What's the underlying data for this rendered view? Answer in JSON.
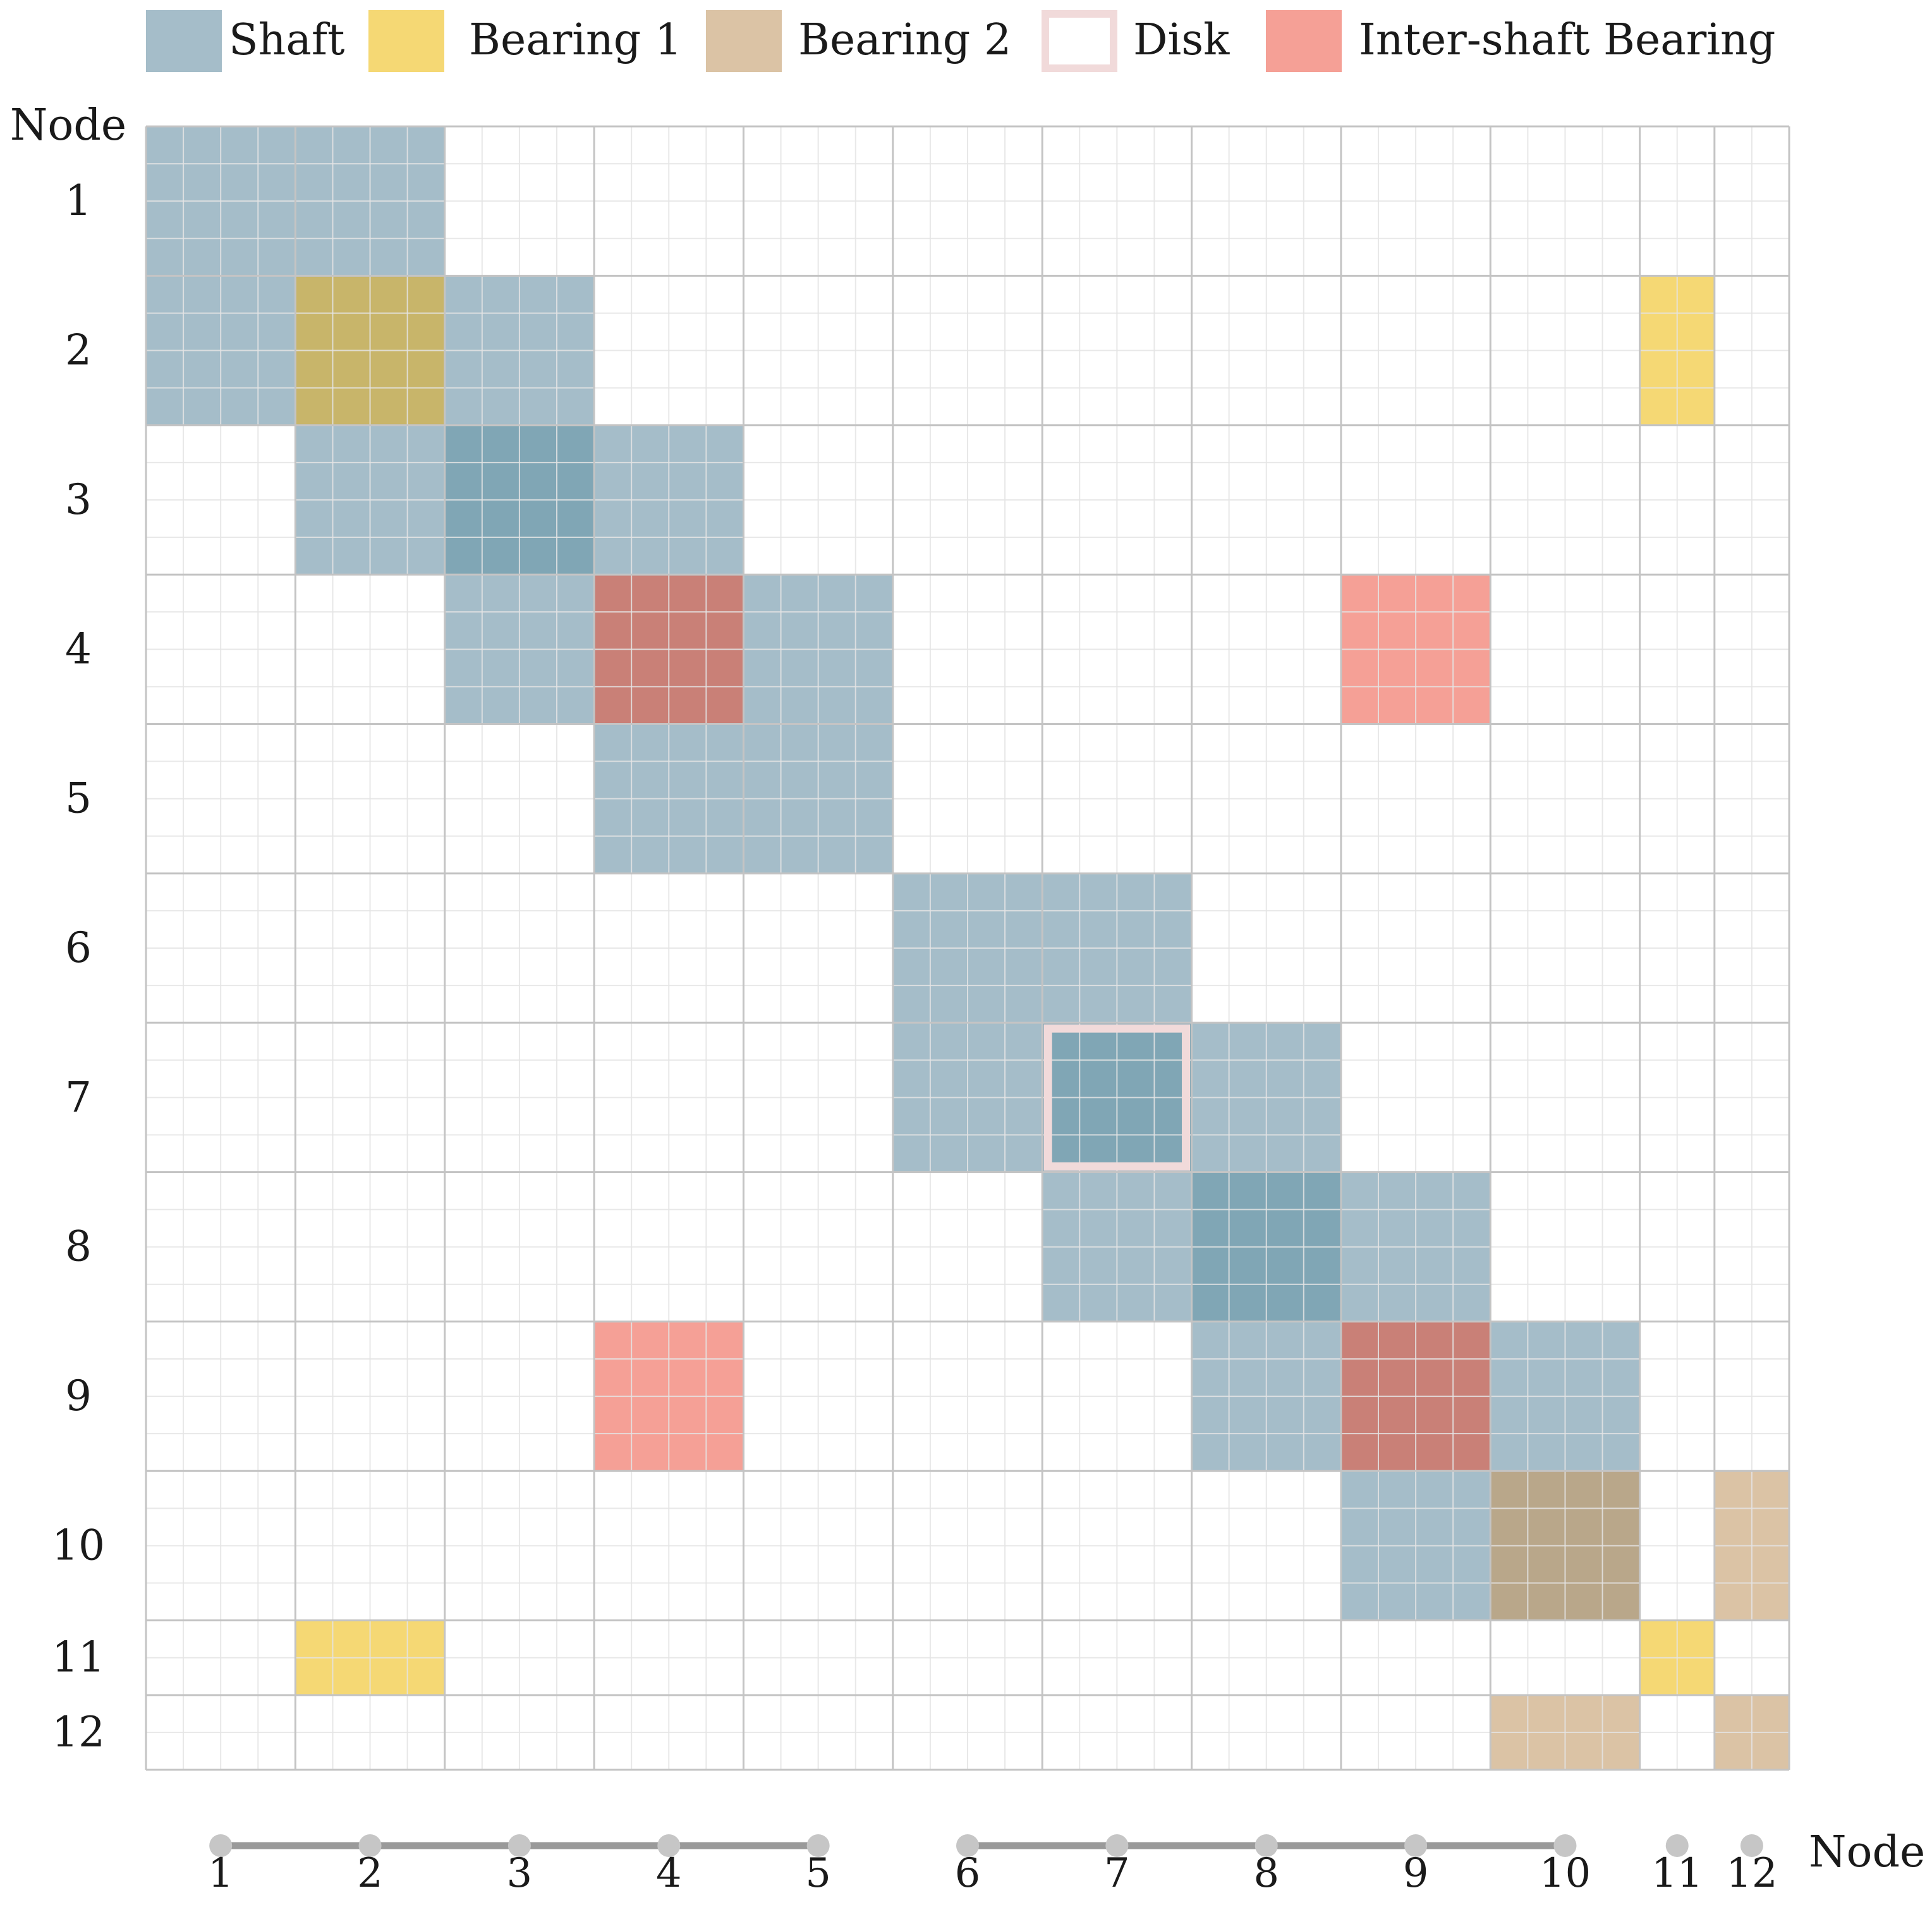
{
  "legend": [
    {
      "key": "shaft",
      "label": "Shaft",
      "color": "#a5bdc9",
      "style": "fill"
    },
    {
      "key": "bearing1",
      "label": "Bearing 1",
      "color": "#f5d874",
      "style": "fill"
    },
    {
      "key": "bearing2",
      "label": "Bearing 2",
      "color": "#dbc3a5",
      "style": "fill"
    },
    {
      "key": "disk",
      "label": "Disk",
      "color": "#f1dada",
      "style": "outline"
    },
    {
      "key": "inter",
      "label": "Inter-shaft Bearing",
      "color": "#f5a096",
      "style": "fill"
    }
  ],
  "row_axis_title": "Node",
  "col_axis_title": "Node",
  "nodes": [
    "1",
    "2",
    "3",
    "4",
    "5",
    "6",
    "7",
    "8",
    "9",
    "10",
    "11",
    "12"
  ],
  "node_dofs": [
    4,
    4,
    4,
    4,
    4,
    4,
    4,
    4,
    4,
    4,
    2,
    2
  ],
  "colors": {
    "grid_fine": "#e4e4e4",
    "grid_major": "#c4c4c4",
    "overlap_shaft": "#80a6b5",
    "overlap_shaft_bearing1": "#c8b56a",
    "overlap_shaft_bearing2": "#b9a78a",
    "overlap_shaft_inter": "#c98077",
    "rotor_line": "#9a9a9a",
    "rotor_dot": "#c6c6c6"
  },
  "blocks": {
    "shaft": [
      [
        1,
        1
      ],
      [
        1,
        2
      ],
      [
        2,
        1
      ],
      [
        2,
        2
      ],
      [
        2,
        3
      ],
      [
        3,
        2
      ],
      [
        3,
        3
      ],
      [
        3,
        4
      ],
      [
        4,
        3
      ],
      [
        4,
        4
      ],
      [
        4,
        5
      ],
      [
        5,
        4
      ],
      [
        5,
        5
      ],
      [
        6,
        6
      ],
      [
        6,
        7
      ],
      [
        7,
        6
      ],
      [
        7,
        7
      ],
      [
        7,
        8
      ],
      [
        8,
        7
      ],
      [
        8,
        8
      ],
      [
        8,
        9
      ],
      [
        9,
        8
      ],
      [
        9,
        9
      ],
      [
        9,
        10
      ],
      [
        10,
        9
      ],
      [
        10,
        10
      ]
    ],
    "shaft_overlap": [
      [
        3,
        3
      ],
      [
        7,
        7
      ],
      [
        8,
        8
      ]
    ],
    "bearing1": [
      [
        2,
        2
      ],
      [
        2,
        11
      ],
      [
        11,
        2
      ],
      [
        11,
        11
      ]
    ],
    "bearing2": [
      [
        10,
        10
      ],
      [
        10,
        12
      ],
      [
        12,
        10
      ],
      [
        12,
        12
      ]
    ],
    "inter": [
      [
        4,
        4
      ],
      [
        4,
        9
      ],
      [
        9,
        4
      ],
      [
        9,
        9
      ]
    ],
    "disk": [
      [
        7,
        7
      ]
    ]
  },
  "rotor_segments": [
    [
      1,
      5
    ],
    [
      6,
      10
    ]
  ],
  "isolated_nodes": [
    "11",
    "12"
  ]
}
